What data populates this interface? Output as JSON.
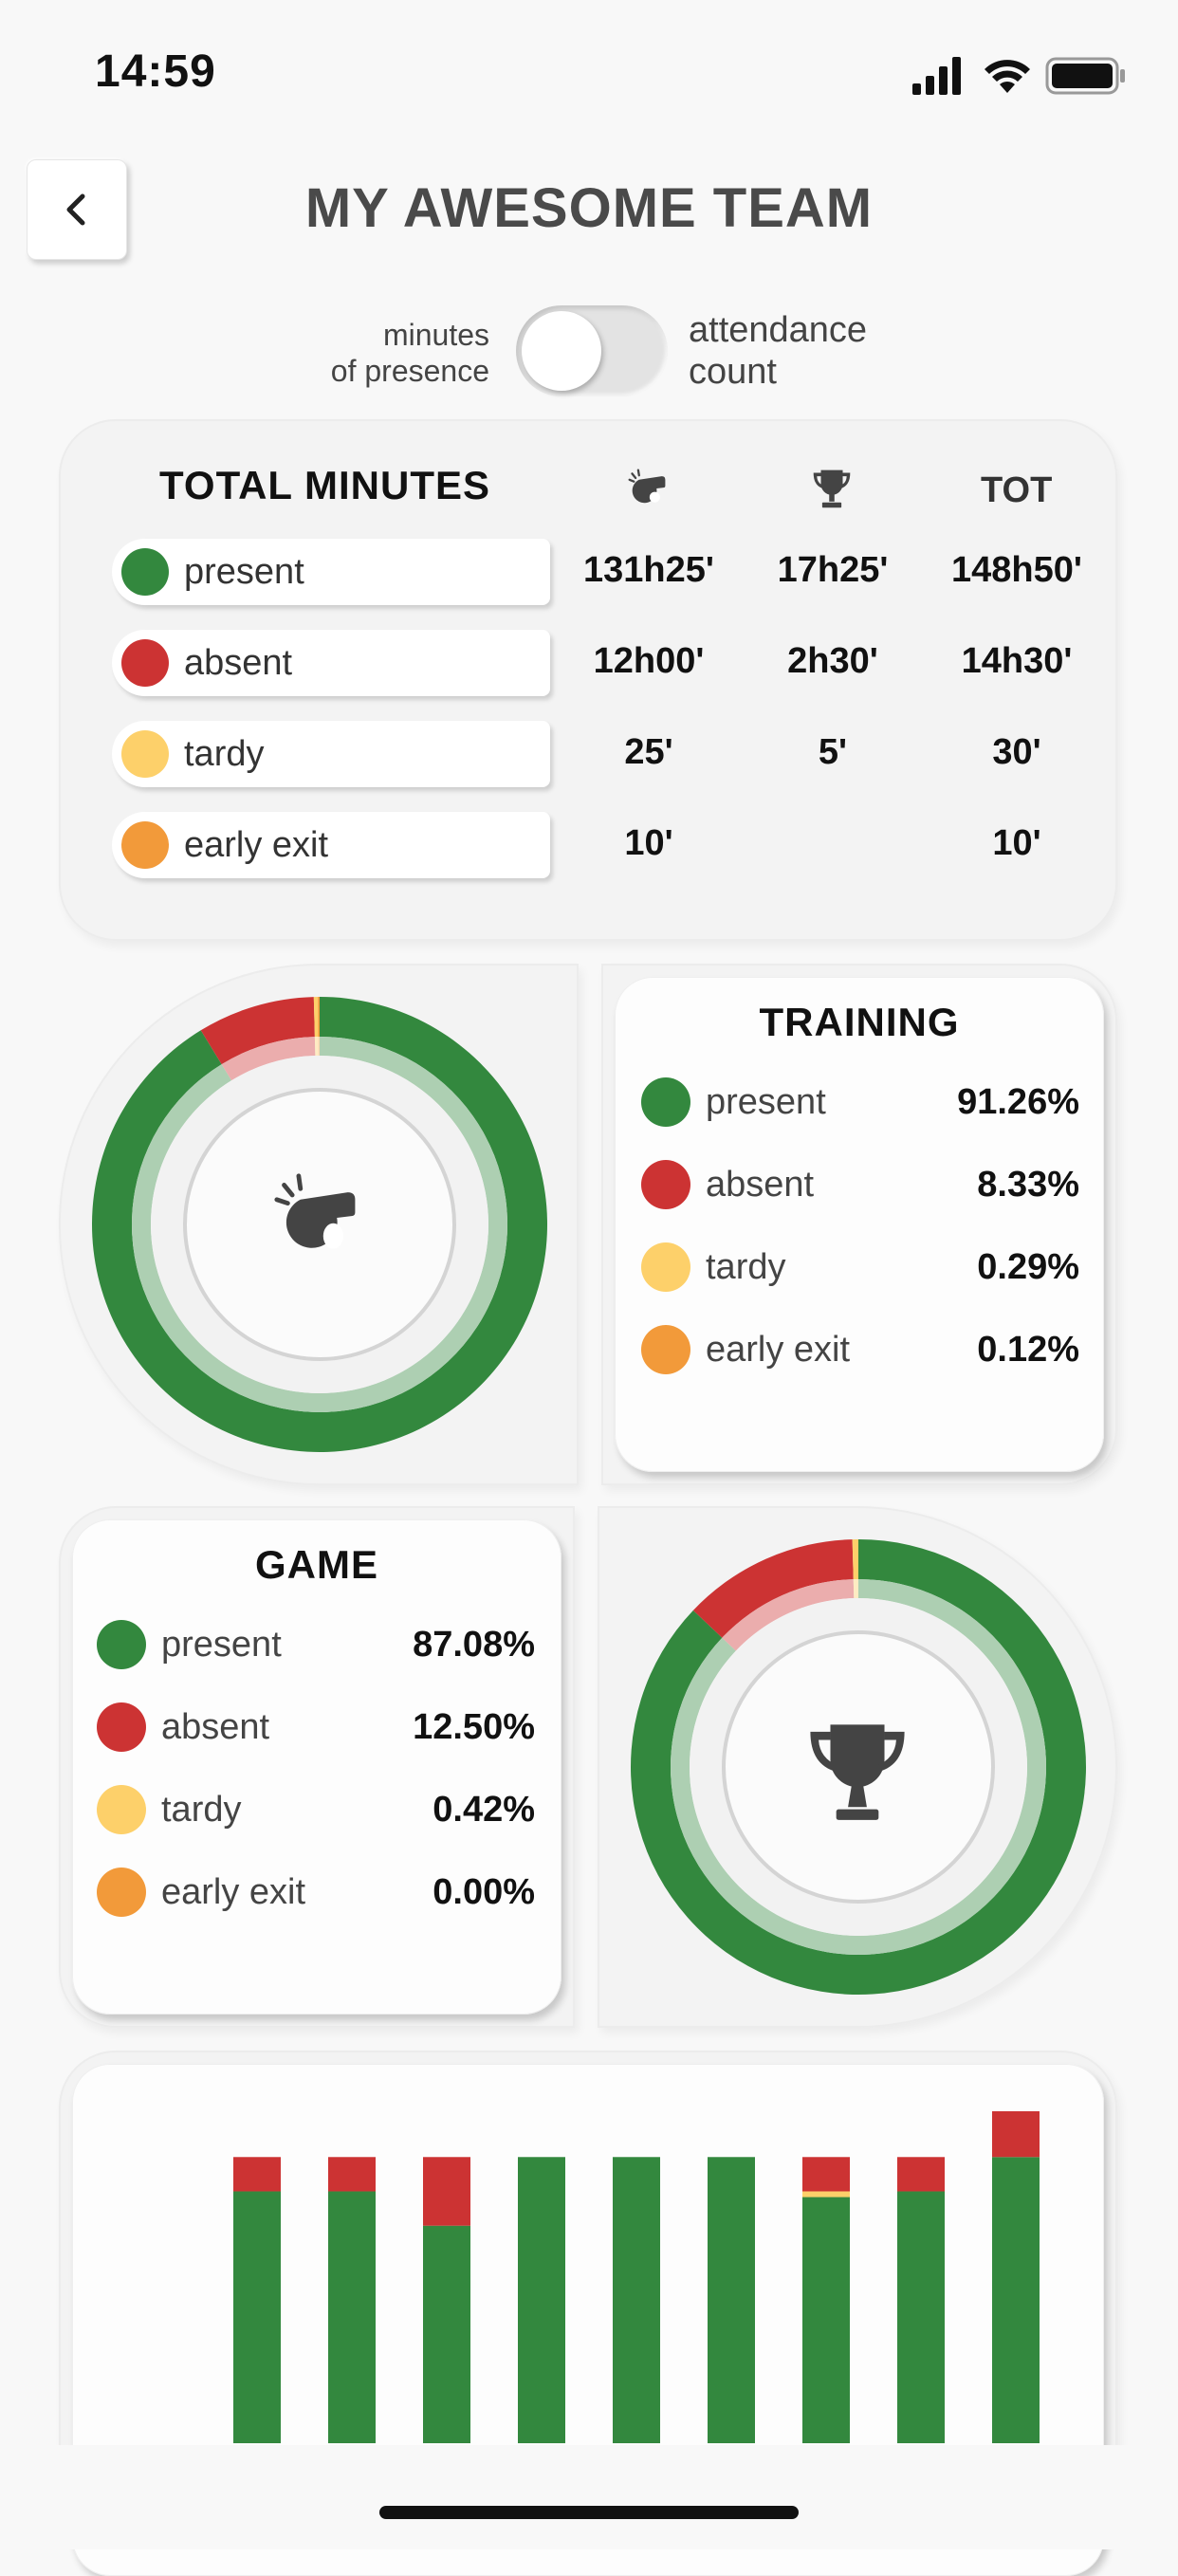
{
  "status_bar": {
    "time": "14:59"
  },
  "header": {
    "title": "MY AWESOME TEAM"
  },
  "toggle": {
    "left_label_line1": "minutes",
    "left_label_line2": "of presence",
    "right_label_line1": "attendance",
    "right_label_line2": "count"
  },
  "totals": {
    "heading": "TOTAL MINUTES",
    "col_training_icon": "whistle-icon",
    "col_game_icon": "trophy-icon",
    "col_total": "TOT",
    "rows": [
      {
        "label": "present",
        "training": "131h25'",
        "game": "17h25'",
        "total": "148h50'"
      },
      {
        "label": "absent",
        "training": "12h00'",
        "game": "2h30'",
        "total": "14h30'"
      },
      {
        "label": "tardy",
        "training": "25'",
        "game": "5'",
        "total": "30'"
      },
      {
        "label": "early exit",
        "training": "10'",
        "game": "",
        "total": "10'"
      }
    ]
  },
  "training": {
    "title": "TRAINING",
    "icon": "whistle-icon",
    "rows": [
      {
        "label": "present",
        "value": "91.26%",
        "pct": 91.26
      },
      {
        "label": "absent",
        "value": "8.33%",
        "pct": 8.33
      },
      {
        "label": "tardy",
        "value": "0.29%",
        "pct": 0.29
      },
      {
        "label": "early exit",
        "value": "0.12%",
        "pct": 0.12
      }
    ]
  },
  "game": {
    "title": "GAME",
    "icon": "trophy-icon",
    "rows": [
      {
        "label": "present",
        "value": "87.08%",
        "pct": 87.08
      },
      {
        "label": "absent",
        "value": "12.50%",
        "pct": 12.5
      },
      {
        "label": "tardy",
        "value": "0.42%",
        "pct": 0.42
      },
      {
        "label": "early exit",
        "value": "0.00%",
        "pct": 0.0
      }
    ]
  },
  "colors": {
    "present": "#33883e",
    "absent": "#cc3333",
    "tardy": "#fdd06a",
    "early_exit": "#f29a3a"
  },
  "chart_data": {
    "type": "bar",
    "stacked": true,
    "categories": [
      "",
      "",
      "",
      "",
      "",
      "",
      "",
      "",
      ""
    ],
    "series": [
      {
        "name": "present",
        "values": [
          0.88,
          0.88,
          0.76,
          1.0,
          1.0,
          1.0,
          0.86,
          0.88,
          1.0
        ]
      },
      {
        "name": "tardy",
        "values": [
          0,
          0,
          0,
          0,
          0,
          0,
          0.02,
          0,
          0
        ]
      },
      {
        "name": "absent",
        "values": [
          0.12,
          0.12,
          0.24,
          0,
          0,
          0,
          0.12,
          0.12,
          0.16
        ]
      }
    ],
    "ylim": [
      0,
      1.16
    ]
  }
}
